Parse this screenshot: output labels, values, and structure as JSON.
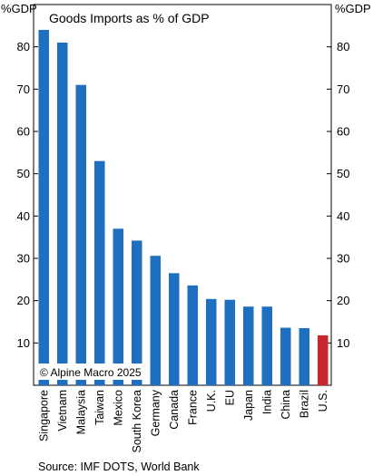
{
  "chart_data": {
    "type": "bar",
    "title": "Goods Imports as % of GDP",
    "ylabel_left": "%GDP",
    "ylabel_right": "%GDP",
    "ylim": [
      0,
      90
    ],
    "yticks": [
      10,
      20,
      30,
      40,
      50,
      60,
      70,
      80
    ],
    "grid": false,
    "categories": [
      "Singapore",
      "Vietnam",
      "Malaysia",
      "Taiwan",
      "Mexico",
      "South Korea",
      "Germany",
      "Canada",
      "France",
      "U.K.",
      "EU",
      "Japan",
      "India",
      "China",
      "Brazil",
      "U.S."
    ],
    "values": [
      84,
      81,
      71,
      53,
      37,
      34.2,
      30.6,
      26.5,
      23.6,
      20.4,
      20.2,
      18.6,
      18.6,
      13.6,
      13.5,
      11.8
    ],
    "highlight_category": "U.S.",
    "annotation": "© Alpine Macro 2025",
    "source": "Source: IMF DOTS, World Bank"
  },
  "colors": {
    "bar": "#1e6fbf",
    "highlight": "#c8262c",
    "axis": "#000000"
  }
}
